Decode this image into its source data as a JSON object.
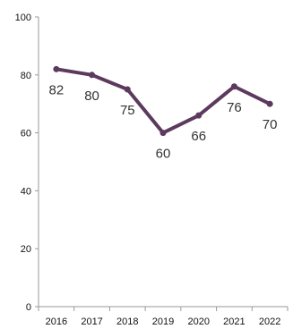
{
  "chart_data": {
    "type": "line",
    "title": "",
    "xlabel": "",
    "ylabel": "",
    "categories": [
      "2016",
      "2017",
      "2018",
      "2019",
      "2020",
      "2021",
      "2022"
    ],
    "series": [
      {
        "values": [
          82,
          80,
          75,
          60,
          66,
          76,
          70
        ],
        "color": "#5b3a5e"
      }
    ],
    "data_labels": [
      "82",
      "80",
      "75",
      "60",
      "66",
      "76",
      "70"
    ],
    "y_ticks": [
      0,
      20,
      40,
      60,
      80,
      100
    ],
    "ylim": [
      0,
      100
    ],
    "grid": false,
    "legend": "none"
  }
}
